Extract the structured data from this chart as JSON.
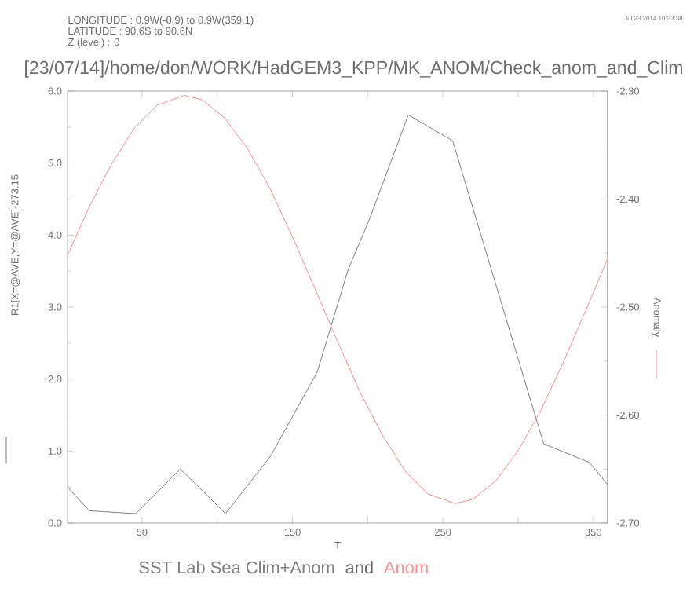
{
  "chart_data": {
    "type": "line",
    "title": "[23/07/14]/home/don/WORK/HadGEM3_KPP/MK_ANOM/Check_anom_and_Clim",
    "xlabel": "T",
    "ylabel": "R1[X=@AVE,Y=@AVE]-273.15",
    "y2label": "Anomaly",
    "annotations": [
      "LONGITUDE : 0.9W(-0.9) to 0.9W(359.1)",
      "LATITUDE : 90.6S to 90.6N",
      "Z (level) : 0",
      "Jul 23 2014 10:33:38",
      "and"
    ],
    "xlim": [
      0.5,
      359.5
    ],
    "xticks": [
      {
        "value": 50,
        "label": "50"
      },
      {
        "value": 100,
        "label": null
      },
      {
        "value": 150,
        "label": "150"
      },
      {
        "value": 200,
        "label": null
      },
      {
        "value": 250,
        "label": "250"
      },
      {
        "value": 300,
        "label": null
      },
      {
        "value": 350,
        "label": "350"
      }
    ],
    "ylim": [
      0,
      6
    ],
    "yticks": [
      {
        "value": 0,
        "label": "0.0"
      },
      {
        "value": 1,
        "label": "1.0"
      },
      {
        "value": 2,
        "label": "2.0"
      },
      {
        "value": 3,
        "label": "3.0"
      },
      {
        "value": 4,
        "label": "4.0"
      },
      {
        "value": 5,
        "label": "5.0"
      },
      {
        "value": 6,
        "label": "6.0"
      }
    ],
    "y2lim": [
      -2.7,
      -2.3
    ],
    "y2ticks": [
      {
        "value": -2.7,
        "label": "-2.70"
      },
      {
        "value": -2.6,
        "label": "-2.60"
      },
      {
        "value": -2.5,
        "label": "-2.50"
      },
      {
        "value": -2.4,
        "label": "-2.40"
      },
      {
        "value": -2.3,
        "label": "-2.30"
      }
    ],
    "legend": "bottom",
    "series": [
      {
        "name": "SST Lab Sea Clim+Anom",
        "color": "#7f7f7f",
        "x": [
          0.5,
          15,
          46,
          75.5,
          105.5,
          135.5,
          166.5,
          187,
          201,
          227,
          256.5,
          317,
          347.5,
          359.5
        ],
        "values": [
          0.5,
          0.17,
          0.13,
          0.75,
          0.13,
          0.93,
          2.1,
          3.52,
          4.21,
          5.67,
          5.31,
          1.1,
          0.84,
          0.53
        ]
      },
      {
        "name": "Anom",
        "color": "#ff8f8f",
        "axis": "y2",
        "x": [
          0.5,
          15,
          30,
          45,
          60,
          78,
          90,
          105,
          120,
          135,
          150,
          165,
          180,
          195,
          210,
          225,
          240,
          258,
          270,
          285,
          300,
          315,
          330,
          345,
          359.5
        ],
        "values": [
          -2.452,
          -2.407,
          -2.367,
          -2.334,
          -2.313,
          -2.304,
          -2.308,
          -2.325,
          -2.353,
          -2.39,
          -2.435,
          -2.483,
          -2.532,
          -2.579,
          -2.619,
          -2.652,
          -2.673,
          -2.682,
          -2.678,
          -2.661,
          -2.633,
          -2.596,
          -2.551,
          -2.503,
          -2.455
        ]
      }
    ]
  }
}
